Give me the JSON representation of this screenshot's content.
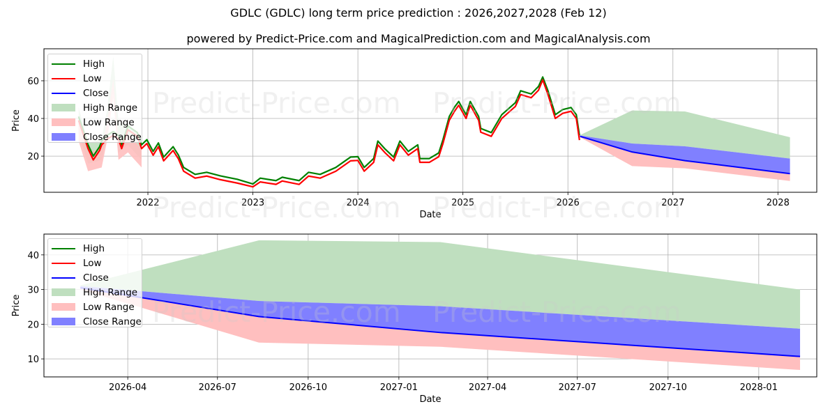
{
  "title": "GDLC (GDLC) long term price prediction : 2026,2027,2028 (Feb 12)",
  "subtitle": "powered by Predict-Price.com and MagicalPrediction.com and MagicalAnalysis.com",
  "watermark": "Predict-Price.com",
  "colors": {
    "high": "#008000",
    "low": "#ff0000",
    "close": "#0000ff",
    "high_range": "#bfdfbf",
    "low_range": "#ffbfbf",
    "close_range": "#8080ff"
  },
  "legend": [
    "High",
    "Low",
    "Close",
    "High Range",
    "Low Range",
    "Close Range"
  ],
  "chart_data": [
    {
      "type": "line",
      "name": "long-term",
      "xlabel": "Date",
      "ylabel": "Price",
      "xlim": [
        2021.01,
        2028.37
      ],
      "ylim": [
        0.8,
        77
      ],
      "grid": true,
      "legend_position": "top-left",
      "x_ticks": [
        {
          "value": 2022,
          "label": "2022"
        },
        {
          "value": 2023,
          "label": "2023"
        },
        {
          "value": 2024,
          "label": "2024"
        },
        {
          "value": 2025,
          "label": "2025"
        },
        {
          "value": 2026,
          "label": "2026"
        },
        {
          "value": 2027,
          "label": "2027"
        },
        {
          "value": 2028,
          "label": "2028"
        }
      ],
      "y_ticks": [
        {
          "value": 20,
          "label": "20"
        },
        {
          "value": 40,
          "label": "40"
        },
        {
          "value": 60,
          "label": "60"
        }
      ],
      "history_range_spike": {
        "year": [
          2021.34,
          2021.43,
          2021.56,
          2021.61,
          2021.67,
          2021.72,
          2021.81,
          2021.94
        ],
        "high": [
          46,
          27,
          29,
          44,
          73,
          38,
          37,
          30
        ],
        "low": [
          38,
          22,
          24,
          38,
          61,
          28,
          32,
          24
        ]
      },
      "history": {
        "year": [
          2021.34,
          2021.43,
          2021.48,
          2021.54,
          2021.56,
          2021.61,
          2021.67,
          2021.72,
          2021.75,
          2021.81,
          2021.9,
          2021.94,
          2021.99,
          2022.05,
          2022.1,
          2022.15,
          2022.24,
          2022.29,
          2022.34,
          2022.45,
          2022.56,
          2022.69,
          2022.85,
          2023.0,
          2023.07,
          2023.22,
          2023.28,
          2023.44,
          2023.53,
          2023.64,
          2023.79,
          2023.93,
          2024.0,
          2024.06,
          2024.15,
          2024.19,
          2024.26,
          2024.34,
          2024.4,
          2024.48,
          2024.57,
          2024.59,
          2024.68,
          2024.77,
          2024.81,
          2024.87,
          2024.92,
          2024.96,
          2025.03,
          2025.07,
          2025.15,
          2025.17,
          2025.27,
          2025.37,
          2025.5,
          2025.55,
          2025.65,
          2025.72,
          2025.76,
          2025.81,
          2025.88,
          2025.95,
          2026.03,
          2026.08,
          2026.11
        ],
        "high": [
          41,
          26,
          20,
          25,
          28,
          31,
          33,
          31,
          26,
          36,
          32.5,
          26,
          28.7,
          22.5,
          27,
          19.5,
          25,
          20.6,
          14,
          10.3,
          11.4,
          9.5,
          7.7,
          5.2,
          8.3,
          7,
          8.8,
          7,
          11.4,
          10.3,
          14,
          19.5,
          19.7,
          14,
          18.7,
          28,
          23.7,
          19.5,
          28,
          22.5,
          26,
          18.7,
          18.7,
          21.7,
          28.7,
          41,
          46,
          49,
          42,
          49,
          41,
          34.7,
          32.5,
          42,
          48.4,
          54.7,
          53,
          57,
          62,
          54.7,
          42,
          44.7,
          45.8,
          42,
          31
        ],
        "low": [
          39,
          24,
          18,
          23,
          26,
          29,
          31,
          29,
          24,
          34,
          30.5,
          24,
          26.7,
          20.5,
          25,
          17.5,
          23,
          18.6,
          12,
          8.3,
          9.4,
          7.5,
          5.7,
          3.7,
          6.3,
          5,
          6.8,
          5,
          9.4,
          8.3,
          12,
          17.5,
          17.7,
          12,
          16.7,
          26,
          21.7,
          17.5,
          26,
          20.5,
          24,
          16.7,
          16.7,
          19.7,
          26.7,
          39,
          43.8,
          47,
          40,
          47,
          39,
          32.7,
          30.5,
          40,
          46.4,
          52.7,
          51,
          55,
          60.5,
          52.7,
          40,
          42.7,
          43.8,
          40,
          28.5
        ]
      }
    },
    {
      "type": "area",
      "name": "forecast-zoom",
      "xlabel": "Date",
      "ylabel": "Price",
      "xlim": [
        "2026-01-06",
        "2028-02-29"
      ],
      "ylim": [
        4.8,
        46
      ],
      "grid": true,
      "legend_position": "top-left",
      "x_ticks": [
        {
          "value": "2026-04-01",
          "label": "2026-04"
        },
        {
          "value": "2026-07-01",
          "label": "2026-07"
        },
        {
          "value": "2026-10-01",
          "label": "2026-10"
        },
        {
          "value": "2027-01-01",
          "label": "2027-01"
        },
        {
          "value": "2027-04-01",
          "label": "2027-04"
        },
        {
          "value": "2027-07-01",
          "label": "2027-07"
        },
        {
          "value": "2027-10-01",
          "label": "2027-10"
        },
        {
          "value": "2028-01-01",
          "label": "2028-01"
        }
      ],
      "y_ticks": [
        {
          "value": 10,
          "label": "10"
        },
        {
          "value": 20,
          "label": "20"
        },
        {
          "value": 30,
          "label": "30"
        },
        {
          "value": 40,
          "label": "40"
        }
      ]
    }
  ],
  "forecast": {
    "dates": [
      "2026-02-12",
      "2026-08-12",
      "2027-02-12",
      "2028-02-12"
    ],
    "high_range_upper": [
      31.2,
      44.2,
      43.7,
      30
    ],
    "close_range_upper": [
      31,
      26.7,
      25.2,
      18.7
    ],
    "close": [
      30.5,
      22.2,
      17.6,
      10.7
    ],
    "low_range_lower": [
      30,
      14.7,
      13.5,
      6.8
    ]
  }
}
